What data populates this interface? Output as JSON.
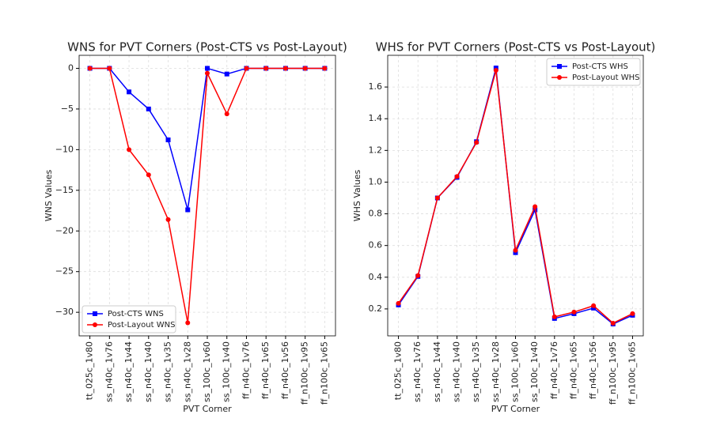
{
  "chart_data": [
    {
      "type": "line",
      "title": "WNS for PVT Corners (Post-CTS vs Post-Layout)",
      "x_label": "PVT Corner",
      "y_label": "WNS Values",
      "categories": [
        "tt_025c_1v80",
        "ss_n40c_1v76",
        "ss_n40c_1v44",
        "ss_n40c_1v40",
        "ss_n40c_1v35",
        "ss_n40c_1v28",
        "ss_100c_1v60",
        "ss_100c_1v40",
        "ff_n40c_1v76",
        "ff_n40c_1v65",
        "ff_n40c_1v56",
        "ff_n100c_1v95",
        "ff_n100c_1v65"
      ],
      "series": [
        {
          "name": "Post-CTS WNS",
          "color": "#0000ff",
          "marker": "square",
          "values": [
            0,
            0,
            -2.9,
            -5.0,
            -8.8,
            -17.4,
            0,
            -0.7,
            0,
            0,
            0,
            0,
            0
          ]
        },
        {
          "name": "Post-Layout WNS",
          "color": "#ff0000",
          "marker": "circle",
          "values": [
            0,
            0,
            -10.0,
            -13.1,
            -18.6,
            -31.3,
            -0.6,
            -5.6,
            0,
            0,
            0,
            0,
            0
          ]
        }
      ],
      "ylim": [
        -32.9,
        1.6
      ],
      "yticks": [
        {
          "value": -30,
          "label": "−30"
        },
        {
          "value": -25,
          "label": "−25"
        },
        {
          "value": -20,
          "label": "−20"
        },
        {
          "value": -15,
          "label": "−15"
        },
        {
          "value": -10,
          "label": "−10"
        },
        {
          "value": -5,
          "label": "−5"
        },
        0
      ],
      "grid": true,
      "legend": "lower-left"
    },
    {
      "type": "line",
      "title": "WHS for PVT Corners (Post-CTS vs Post-Layout)",
      "x_label": "PVT Corner",
      "y_label": "WHS Values",
      "categories": [
        "tt_025c_1v80",
        "ss_n40c_1v76",
        "ss_n40c_1v44",
        "ss_n40c_1v40",
        "ss_n40c_1v35",
        "ss_n40c_1v28",
        "ss_100c_1v60",
        "ss_100c_1v40",
        "ff_n40c_1v76",
        "ff_n40c_1v65",
        "ff_n40c_1v56",
        "ff_n100c_1v95",
        "ff_n100c_1v65"
      ],
      "series": [
        {
          "name": "Post-CTS WHS",
          "color": "#0000ff",
          "marker": "square",
          "values": [
            0.225,
            0.405,
            0.9,
            1.03,
            1.255,
            1.72,
            0.555,
            0.825,
            0.14,
            0.17,
            0.205,
            0.105,
            0.16
          ]
        },
        {
          "name": "Post-Layout WHS",
          "color": "#ff0000",
          "marker": "circle",
          "values": [
            0.235,
            0.41,
            0.9,
            1.035,
            1.25,
            1.705,
            0.57,
            0.845,
            0.15,
            0.18,
            0.22,
            0.11,
            0.17
          ]
        }
      ],
      "ylim": [
        0.03,
        1.8
      ],
      "yticks": [
        0.2,
        0.4,
        0.6,
        0.8,
        {
          "value": 1.0,
          "label": "1.0"
        },
        1.2,
        1.4,
        1.6
      ],
      "grid": true,
      "legend": "upper-right"
    }
  ]
}
